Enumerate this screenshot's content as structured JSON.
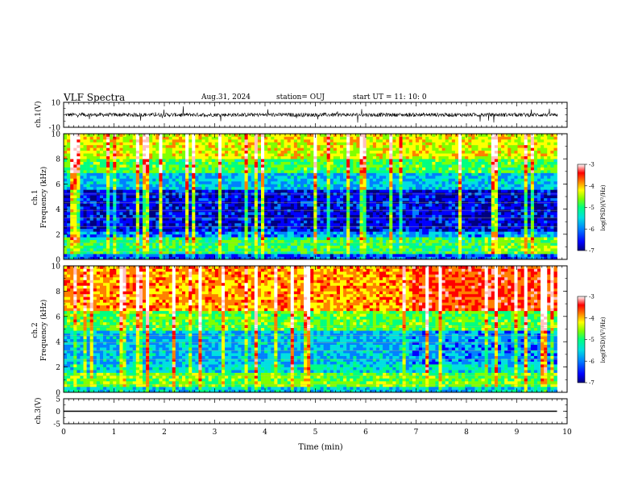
{
  "header": {
    "title": "VLF Spectra",
    "date": "Aug.31, 2024",
    "station": "station= OUJ",
    "start": "start  UT =  11: 10: 0"
  },
  "colors": {
    "colormap": [
      "#000080",
      "#0000ff",
      "#0080ff",
      "#00e0e0",
      "#00ff80",
      "#80ff00",
      "#ffff00",
      "#ff8000",
      "#ff0000",
      "#ffc0c0",
      "#ffffff"
    ]
  },
  "chart_data": [
    {
      "type": "line",
      "ylabel": "ch.1(V)",
      "ylim": [
        -10,
        10
      ],
      "yticks": [
        "10",
        "-10"
      ],
      "xlim": [
        0,
        10
      ]
    },
    {
      "type": "heatmap",
      "ylabel": "ch.1\nFrequency (kHz)",
      "ylabel_top": "ch.1",
      "ylabel_bottom": "Frequency (kHz)",
      "ylim": [
        0,
        10
      ],
      "yticks": [
        "0",
        "2",
        "4",
        "6",
        "8",
        "10"
      ],
      "xlim": [
        0,
        10
      ],
      "colorbar": {
        "label": "log(PSD)(V²/Hz)",
        "range": [
          -7,
          -3
        ],
        "ticks": [
          "-3",
          "-4",
          "-5",
          "-6",
          "-7"
        ]
      }
    },
    {
      "type": "heatmap",
      "ylabel": "ch.2\nFrequency (kHz)",
      "ylabel_top": "ch.2",
      "ylabel_bottom": "Frequency (kHz)",
      "ylim": [
        0,
        10
      ],
      "yticks": [
        "0",
        "2",
        "4",
        "6",
        "8",
        "10"
      ],
      "xlim": [
        0,
        10
      ],
      "colorbar": {
        "label": "log(PSD)(V²/Hz)",
        "range": [
          -7,
          -3
        ],
        "ticks": [
          "-3",
          "-4",
          "-5",
          "-6",
          "-7"
        ]
      }
    },
    {
      "type": "line",
      "ylabel": "ch.3(V)",
      "ylim": [
        -5,
        5
      ],
      "yticks": [
        "5",
        "0",
        "-5"
      ],
      "xlim": [
        0,
        10
      ],
      "series": [
        {
          "x": [
            0,
            9.8
          ],
          "y": [
            0,
            0
          ]
        }
      ],
      "xlabel": "Time (min)",
      "xticks": [
        "0",
        "1",
        "2",
        "3",
        "4",
        "5",
        "6",
        "7",
        "8",
        "9",
        "10"
      ]
    }
  ]
}
